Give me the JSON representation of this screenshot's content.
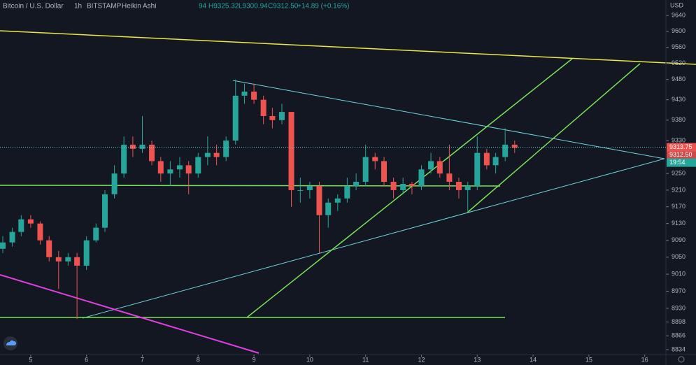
{
  "chart_data": {
    "type": "candlestick",
    "title": "Bitcoin / U.S. Dollar",
    "interval": "1h",
    "exchange": "BITSTAMP",
    "style": "Heikin Ashi",
    "legend_values": [
      "94",
      "H9325.32",
      "L9300.94",
      "C9312.50",
      "+14.89 (+0.16%)"
    ],
    "currency": "USD",
    "up_color": "#26a69a",
    "down_color": "#ef5350",
    "log_scale": true,
    "ylim": [
      8818,
      9679
    ],
    "yticks": [
      9640,
      9600,
      9560,
      9520,
      9480,
      9430,
      9380,
      9330,
      9250,
      9210,
      9170,
      9130,
      9090,
      9050,
      9010,
      8970,
      8930,
      8898,
      8866,
      8834
    ],
    "xlim": [
      4.45,
      16.38
    ],
    "xticks": [
      5,
      6,
      7,
      8,
      9,
      10,
      11,
      12,
      13,
      14,
      15,
      16
    ],
    "price_line": 9313.75,
    "last_price": {
      "value": 9312.5,
      "label": "9312.50"
    },
    "countdown": "19:54",
    "x": [
      4.5,
      4.67,
      4.83,
      5,
      5.17,
      5.33,
      5.5,
      5.67,
      5.83,
      6,
      6.17,
      6.33,
      6.5,
      6.67,
      6.83,
      7,
      7.17,
      7.33,
      7.5,
      7.67,
      7.83,
      8,
      8.17,
      8.33,
      8.5,
      8.67,
      8.83,
      9,
      9.17,
      9.33,
      9.5,
      9.67,
      9.83,
      10,
      10.17,
      10.33,
      10.5,
      10.67,
      10.83,
      11,
      11.17,
      11.33,
      11.5,
      11.67,
      11.83,
      12,
      12.17,
      12.33,
      12.5,
      12.67,
      12.83,
      13,
      13.17,
      13.33,
      13.5,
      13.67
    ],
    "ohlc": [
      [
        9070,
        9100,
        9060,
        9085
      ],
      [
        9085,
        9120,
        9075,
        9110
      ],
      [
        9110,
        9150,
        9100,
        9140
      ],
      [
        9140,
        9150,
        9120,
        9130
      ],
      [
        9130,
        9135,
        9080,
        9090
      ],
      [
        9090,
        9100,
        9040,
        9050
      ],
      [
        9050,
        9065,
        8975,
        9040
      ],
      [
        9040,
        9060,
        9030,
        9050
      ],
      [
        9050,
        9060,
        8905,
        9030
      ],
      [
        9030,
        9100,
        9020,
        9090
      ],
      [
        9090,
        9130,
        9085,
        9120
      ],
      [
        9120,
        9210,
        9110,
        9200
      ],
      [
        9200,
        9270,
        9190,
        9250
      ],
      [
        9250,
        9340,
        9240,
        9320
      ],
      [
        9320,
        9340,
        9290,
        9310
      ],
      [
        9310,
        9390,
        9300,
        9320
      ],
      [
        9320,
        9330,
        9270,
        9280
      ],
      [
        9280,
        9290,
        9230,
        9250
      ],
      [
        9250,
        9280,
        9220,
        9260
      ],
      [
        9260,
        9290,
        9240,
        9270
      ],
      [
        9270,
        9280,
        9200,
        9250
      ],
      [
        9250,
        9300,
        9240,
        9290
      ],
      [
        9290,
        9340,
        9270,
        9300
      ],
      [
        9300,
        9320,
        9270,
        9290
      ],
      [
        9290,
        9340,
        9280,
        9330
      ],
      [
        9330,
        9480,
        9320,
        9440
      ],
      [
        9440,
        9470,
        9420,
        9450
      ],
      [
        9450,
        9470,
        9420,
        9430
      ],
      [
        9430,
        9440,
        9370,
        9390
      ],
      [
        9390,
        9410,
        9360,
        9380
      ],
      [
        9380,
        9420,
        9370,
        9400
      ],
      [
        9400,
        9400,
        9170,
        9210
      ],
      [
        9210,
        9240,
        9180,
        9210
      ],
      [
        9210,
        9230,
        9190,
        9220
      ],
      [
        9220,
        9230,
        9060,
        9150
      ],
      [
        9150,
        9190,
        9120,
        9180
      ],
      [
        9180,
        9200,
        9160,
        9190
      ],
      [
        9190,
        9240,
        9180,
        9220
      ],
      [
        9220,
        9250,
        9210,
        9230
      ],
      [
        9230,
        9320,
        9220,
        9290
      ],
      [
        9290,
        9300,
        9260,
        9280
      ],
      [
        9280,
        9290,
        9220,
        9230
      ],
      [
        9230,
        9240,
        9190,
        9210
      ],
      [
        9210,
        9240,
        9200,
        9225
      ],
      [
        9225,
        9230,
        9200,
        9220
      ],
      [
        9220,
        9270,
        9210,
        9260
      ],
      [
        9260,
        9300,
        9250,
        9280
      ],
      [
        9280,
        9290,
        9240,
        9250
      ],
      [
        9250,
        9320,
        9210,
        9230
      ],
      [
        9230,
        9240,
        9190,
        9210
      ],
      [
        9210,
        9230,
        9160,
        9220
      ],
      [
        9220,
        9340,
        9210,
        9300
      ],
      [
        9300,
        9310,
        9260,
        9270
      ],
      [
        9270,
        9300,
        9250,
        9290
      ],
      [
        9290,
        9360,
        9280,
        9320
      ],
      [
        9320,
        9330,
        9300,
        9312.5
      ]
    ]
  }
}
